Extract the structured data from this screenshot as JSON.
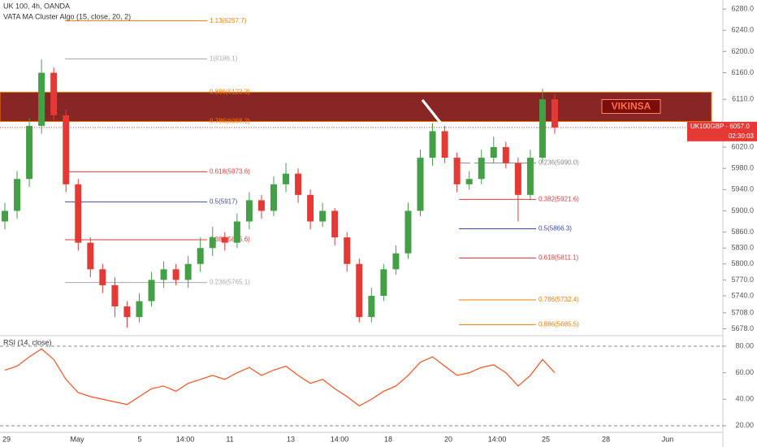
{
  "chart_data": [
    {
      "type": "candlestick",
      "title": "UK 100, 4h, OANDA",
      "subtitle": "VATA MA Cluster Algo (15, close, 20, 2)",
      "symbol_label": "UK100GBP · 6057.0",
      "countdown": "02:30:03",
      "watermark": "VIKINSA",
      "last_price": 6057.0,
      "up_color": "#43a047",
      "down_color": "#e53935",
      "ylim": [
        5665,
        6297
      ],
      "yticks": [
        {
          "value": 6280,
          "label": "6280.0"
        },
        {
          "value": 6240,
          "label": "6240.0"
        },
        {
          "value": 6200,
          "label": "6200.0"
        },
        {
          "value": 6160,
          "label": "6160.0"
        },
        {
          "value": 6110,
          "label": "6110.0"
        },
        {
          "value": 6020,
          "label": "6020.0"
        },
        {
          "value": 5980,
          "label": "5980.0"
        },
        {
          "value": 5940,
          "label": "5940.0"
        },
        {
          "value": 5900,
          "label": "5900.0"
        },
        {
          "value": 5860,
          "label": "5860.0"
        },
        {
          "value": 5830,
          "label": "5830.0"
        },
        {
          "value": 5800,
          "label": "5800.0"
        },
        {
          "value": 5770,
          "label": "5770.0"
        },
        {
          "value": 5740,
          "label": "5740.0"
        },
        {
          "value": 5708,
          "label": "5708.0"
        },
        {
          "value": 5678,
          "label": "5678.0"
        }
      ],
      "x_labels": [
        "29",
        "May",
        "5",
        "14:00",
        "11",
        "13",
        "14:00",
        "18",
        "20",
        "14:00",
        "25",
        "28",
        "Jun"
      ],
      "open": [
        5880,
        5900,
        5960,
        6060,
        6160,
        6080,
        5950,
        5840,
        5790,
        5760,
        5720,
        5700,
        5730,
        5770,
        5790,
        5770,
        5800,
        5830,
        5850,
        5840,
        5880,
        5920,
        5900,
        5950,
        5970,
        5930,
        5880,
        5900,
        5850,
        5800,
        5700,
        5740,
        5790,
        5820,
        5900,
        6000,
        6050,
        6000,
        5950,
        5960,
        6000,
        6020,
        5990,
        5930,
        6000,
        6110
      ],
      "high": [
        5915,
        5975,
        6075,
        6185,
        6170,
        6090,
        5960,
        5850,
        5800,
        5775,
        5730,
        5745,
        5785,
        5805,
        5800,
        5815,
        5850,
        5870,
        5860,
        5895,
        5935,
        5930,
        5965,
        5990,
        5980,
        5940,
        5915,
        5905,
        5860,
        5810,
        5755,
        5800,
        5835,
        5915,
        6015,
        6065,
        6060,
        6010,
        5975,
        6015,
        6040,
        6030,
        6000,
        6015,
        6130,
        6120
      ],
      "low": [
        5865,
        5885,
        5945,
        6045,
        6070,
        5935,
        5825,
        5775,
        5745,
        5700,
        5680,
        5690,
        5720,
        5755,
        5760,
        5755,
        5785,
        5815,
        5825,
        5830,
        5865,
        5885,
        5890,
        5935,
        5915,
        5865,
        5870,
        5835,
        5785,
        5690,
        5690,
        5730,
        5780,
        5810,
        5890,
        5985,
        5990,
        5935,
        5940,
        5950,
        5990,
        5980,
        5880,
        5920,
        5990,
        6045
      ],
      "close": [
        5900,
        5960,
        6060,
        6160,
        6080,
        5950,
        5840,
        5790,
        5760,
        5720,
        5700,
        5730,
        5770,
        5790,
        5770,
        5800,
        5830,
        5850,
        5840,
        5880,
        5920,
        5900,
        5950,
        5970,
        5930,
        5880,
        5900,
        5850,
        5800,
        5700,
        5740,
        5790,
        5820,
        5900,
        6000,
        6050,
        6000,
        5950,
        5960,
        6000,
        6020,
        5990,
        5930,
        6000,
        6110,
        6057
      ],
      "fib_sets": [
        {
          "levels": [
            {
              "value": 6257.7,
              "label": "1.13(6257.7)"
            },
            {
              "value": 6186.1,
              "label": "1(6186.1)"
            },
            {
              "value": 6123.3,
              "label": "0.886(6123.3)"
            },
            {
              "value": 6068.2,
              "label": "0.786(6068.2)"
            },
            {
              "value": 5973.6,
              "label": "0.618(5973.6)"
            },
            {
              "value": 5917,
              "label": "0.5(5917)"
            },
            {
              "value": 5845.6,
              "label": "0.382(5845.6)"
            },
            {
              "value": 5765.1,
              "label": "0.236(5765.1)"
            }
          ]
        },
        {
          "levels": [
            {
              "value": 5990.0,
              "label": "0.236(5990.0)"
            },
            {
              "value": 5921.6,
              "label": "0.382(5921.6)"
            },
            {
              "value": 5866.3,
              "label": "0.5(5866.3)"
            },
            {
              "value": 5811.1,
              "label": "0.618(5811.1)"
            },
            {
              "value": 5732.4,
              "label": "0.786(5732.4)"
            },
            {
              "value": 5685.5,
              "label": "0.886(5685.5)"
            }
          ]
        }
      ]
    },
    {
      "type": "line",
      "title": "RSI (14, close)",
      "color": "#f4511e",
      "ylim": [
        15,
        88
      ],
      "yticks": [
        {
          "value": 80,
          "label": "80.00"
        },
        {
          "value": 60,
          "label": "60.00"
        },
        {
          "value": 40,
          "label": "40.00"
        },
        {
          "value": 20,
          "label": "20.00"
        }
      ],
      "values": [
        62,
        65,
        72,
        78,
        70,
        55,
        45,
        42,
        40,
        38,
        36,
        42,
        48,
        50,
        46,
        52,
        55,
        58,
        55,
        60,
        64,
        58,
        62,
        65,
        58,
        52,
        55,
        48,
        42,
        35,
        40,
        46,
        50,
        58,
        68,
        72,
        65,
        58,
        60,
        64,
        66,
        60,
        50,
        58,
        70,
        60
      ]
    }
  ]
}
